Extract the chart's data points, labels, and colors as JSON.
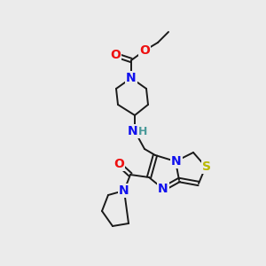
{
  "bg_color": "#ebebeb",
  "atom_colors": {
    "C": "#1a1a1a",
    "N": "#1010ee",
    "O": "#ee1010",
    "S": "#b8b800",
    "H": "#4a9a9a"
  },
  "bond_color": "#1a1a1a",
  "bond_width": 1.4,
  "font_size_atom": 10,
  "font_size_H": 9,
  "title": ""
}
